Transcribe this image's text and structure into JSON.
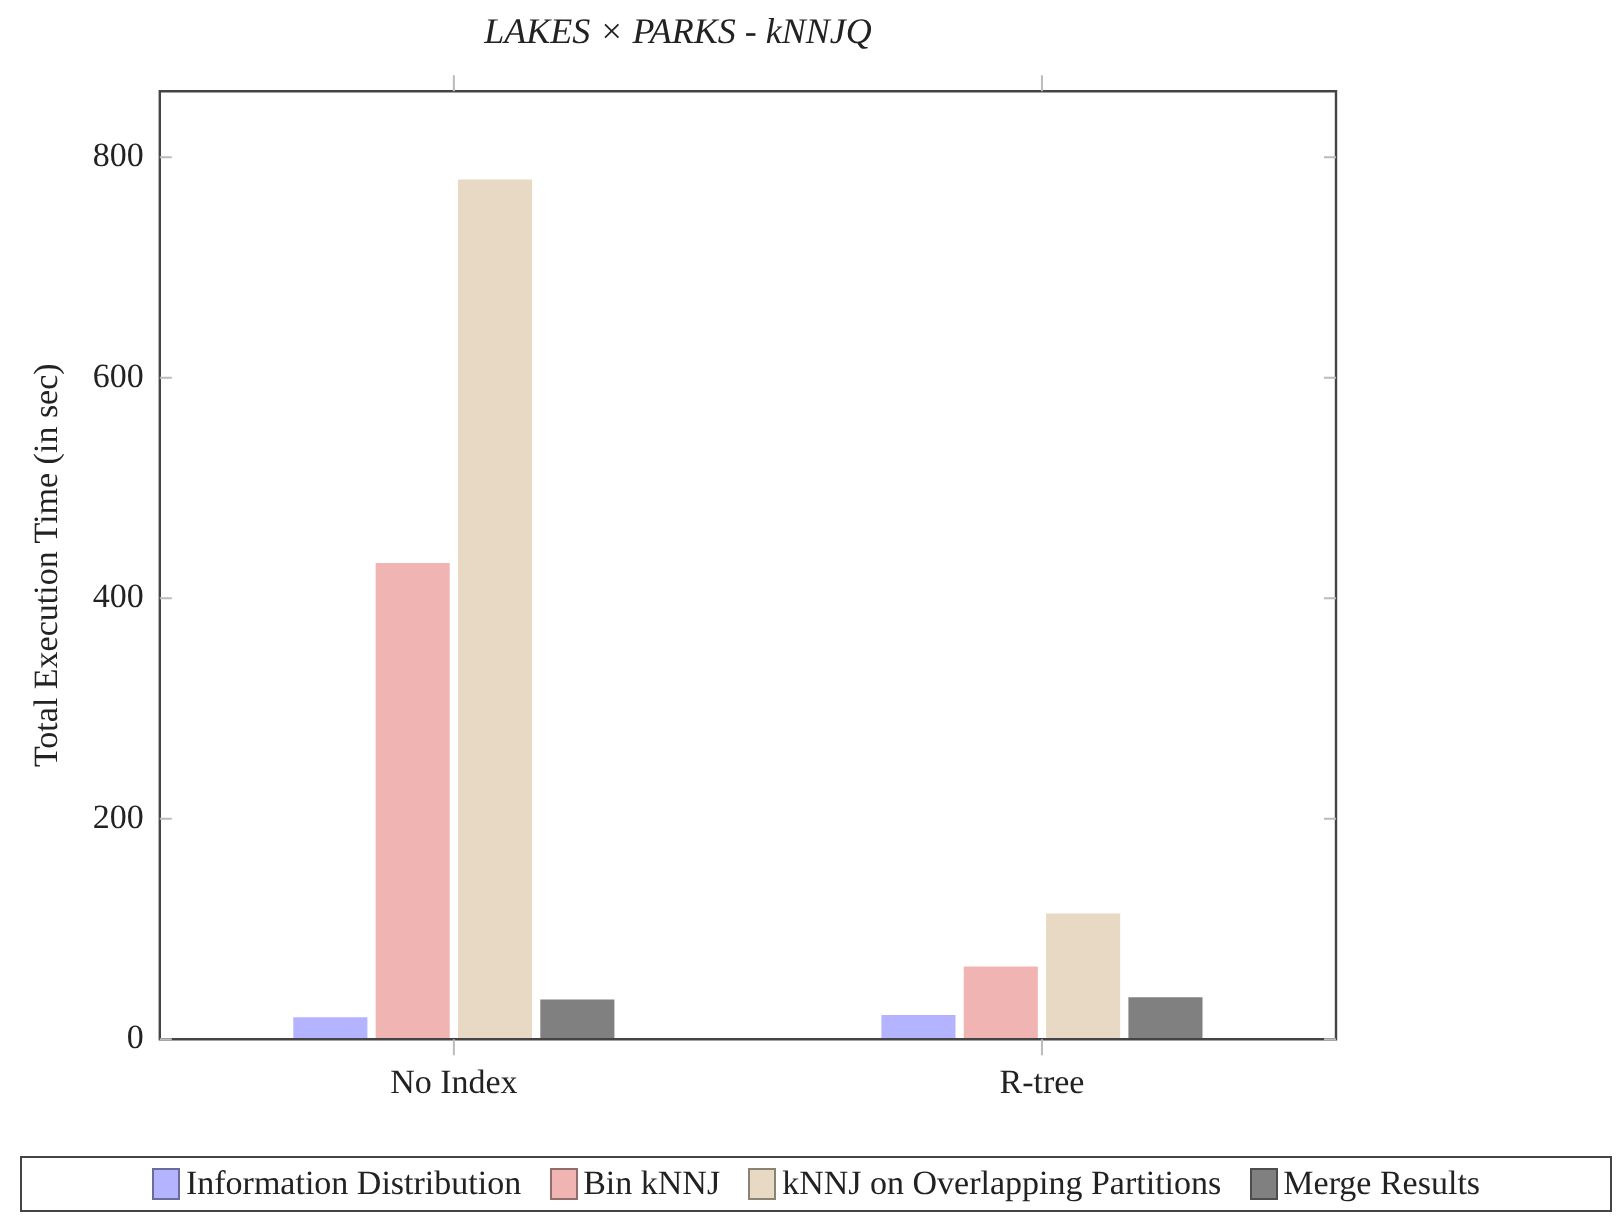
{
  "chart_data": {
    "type": "bar",
    "title": "LAKES × PARKS - kNNJQ",
    "ylabel": "Total Execution Time (in sec)",
    "categories": [
      "No Index",
      "R-tree"
    ],
    "series": [
      {
        "name": "Information Distribution",
        "color": "#b3b3ff",
        "values": [
          20,
          22
        ]
      },
      {
        "name": "Bin kNNJ",
        "color": "#f0b5b3",
        "values": [
          432,
          66
        ]
      },
      {
        "name": "kNNJ on Overlapping Partitions",
        "color": "#e8d9c5",
        "values": [
          780,
          114
        ]
      },
      {
        "name": "Merge Results",
        "color": "#808080",
        "values": [
          36,
          38
        ]
      }
    ],
    "ylim": [
      0,
      860
    ],
    "yticks": [
      0,
      200,
      400,
      600,
      800
    ],
    "grid": false,
    "legend": "bottom"
  }
}
